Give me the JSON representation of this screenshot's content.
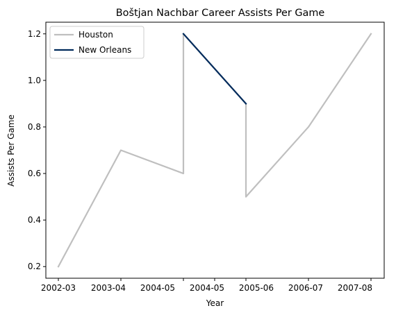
{
  "chart_data": {
    "type": "line",
    "title": "Boštjan Nachbar Career Assists Per Game",
    "xlabel": "Year",
    "ylabel": "Assists Per Game",
    "x_tick_labels": [
      "2002-03",
      "2003-04",
      "2004-05",
      "2004-05",
      "2005-06",
      "2006-07",
      "2007-08"
    ],
    "y_ticks": [
      0.2,
      0.4,
      0.6,
      0.8,
      1.0,
      1.2
    ],
    "y_tick_labels": [
      "0.2",
      "0.4",
      "0.6",
      "0.8",
      "1.0",
      "1.2"
    ],
    "ylim": [
      0.15,
      1.25
    ],
    "grid": false,
    "legend_position": "top-left",
    "series": [
      {
        "name": "Houston",
        "color": "#bfbfbf",
        "points": [
          {
            "x": "2002-03",
            "y": 0.2
          },
          {
            "x": "2003-04",
            "y": 0.7
          },
          {
            "x": "2004-05",
            "y": 0.6
          },
          {
            "x": "2004-05",
            "y": 1.2
          },
          {
            "x": "2004-05",
            "y": 0.9
          },
          {
            "x": "2004-05",
            "y": 0.5
          },
          {
            "x": "2006-07",
            "y": 0.8
          },
          {
            "x": "2007-08",
            "y": 1.2
          }
        ]
      },
      {
        "name": "New Orleans",
        "color": "#002b5c",
        "points": [
          {
            "x": "2004-05",
            "y": 1.2
          },
          {
            "x": "2004-05",
            "y": 0.9
          }
        ]
      }
    ]
  }
}
